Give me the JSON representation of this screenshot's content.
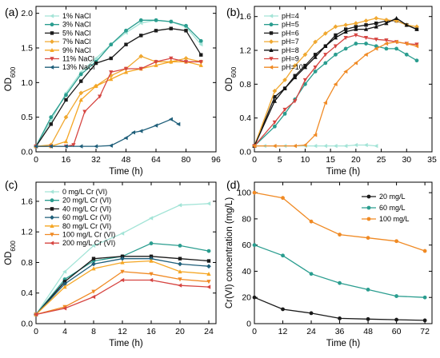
{
  "chart_data": [
    {
      "panel": "(a)",
      "type": "line",
      "xlabel": "Time (h)",
      "ylabel": "OD",
      "ylabel_sub": "600",
      "xlim": [
        0,
        96
      ],
      "ylim": [
        0,
        2.1
      ],
      "xticks": [
        0,
        16,
        32,
        48,
        64,
        80,
        96
      ],
      "yticks": [
        0,
        0.5,
        1.0,
        1.5,
        2.0
      ],
      "ytick_labels": [
        "0.0",
        "0.5",
        "1.0",
        "1.5",
        "2.0"
      ],
      "legend": "top-left",
      "series": [
        {
          "name": "1% NaCl",
          "color": "#a3e4d7",
          "marker": "triangle-left",
          "x": [
            0,
            8,
            16,
            24,
            32,
            40,
            48,
            56,
            64,
            72,
            80,
            88
          ],
          "y": [
            0.08,
            0.45,
            0.85,
            1.15,
            1.35,
            1.55,
            1.72,
            1.86,
            1.9,
            1.88,
            1.8,
            1.55
          ]
        },
        {
          "name": "3% NaCl",
          "color": "#2a9d8f",
          "marker": "circle",
          "x": [
            0,
            8,
            16,
            24,
            32,
            40,
            48,
            56,
            64,
            72,
            80,
            88
          ],
          "y": [
            0.08,
            0.5,
            0.82,
            1.12,
            1.3,
            1.55,
            1.75,
            1.9,
            1.9,
            1.88,
            1.82,
            1.6
          ]
        },
        {
          "name": "5% NaCl",
          "color": "#1a1a1a",
          "marker": "square",
          "x": [
            0,
            8,
            16,
            24,
            32,
            40,
            48,
            56,
            64,
            72,
            80,
            88
          ],
          "y": [
            0.08,
            0.4,
            0.75,
            1.02,
            1.28,
            1.35,
            1.55,
            1.68,
            1.75,
            1.78,
            1.75,
            1.4
          ]
        },
        {
          "name": "7% NaCl",
          "color": "#f0a830",
          "marker": "diamond",
          "x": [
            0,
            8,
            16,
            24,
            32,
            40,
            48,
            56,
            64,
            72,
            80,
            88
          ],
          "y": [
            0.08,
            0.1,
            0.5,
            0.85,
            0.95,
            1.1,
            1.2,
            1.38,
            1.3,
            1.3,
            1.35,
            1.3
          ]
        },
        {
          "name": "9% NaCl",
          "color": "#f5a623",
          "marker": "triangle-up",
          "x": [
            0,
            8,
            16,
            24,
            32,
            40,
            48,
            56,
            64,
            72,
            80,
            88
          ],
          "y": [
            0.08,
            0.08,
            0.15,
            0.75,
            0.95,
            1.05,
            1.15,
            1.2,
            1.25,
            1.3,
            1.3,
            1.25
          ]
        },
        {
          "name": "11% NaCl",
          "color": "#d64541",
          "marker": "triangle-down",
          "x": [
            0,
            8,
            16,
            20,
            26,
            34,
            40,
            48,
            56,
            64,
            72,
            80,
            88
          ],
          "y": [
            0.08,
            0.08,
            0.08,
            0.1,
            0.58,
            0.8,
            1.15,
            1.2,
            1.2,
            1.3,
            1.35,
            1.3,
            1.3
          ]
        },
        {
          "name": "13% NaCl",
          "color": "#1f5f7a",
          "marker": "triangle-left",
          "x": [
            0,
            8,
            16,
            24,
            32,
            40,
            48,
            52,
            56,
            64,
            72,
            76
          ],
          "y": [
            0.08,
            0.08,
            0.08,
            0.08,
            0.08,
            0.09,
            0.2,
            0.28,
            0.3,
            0.38,
            0.47,
            0.4
          ]
        }
      ]
    },
    {
      "panel": "(b)",
      "type": "line",
      "xlabel": "Time (h)",
      "ylabel": "OD",
      "ylabel_sub": "600",
      "xlim": [
        0,
        35
      ],
      "ylim": [
        0,
        1.72
      ],
      "xticks": [
        0,
        5,
        10,
        15,
        20,
        25,
        30,
        35
      ],
      "yticks": [
        0,
        0.4,
        0.8,
        1.2,
        1.6
      ],
      "ytick_labels": [
        "0.0",
        "0.4",
        "0.8",
        "1.2",
        "1.6"
      ],
      "legend": "top-left",
      "series": [
        {
          "name": "pH=4",
          "color": "#a3e4d7",
          "marker": "triangle-left",
          "x": [
            0,
            2,
            4,
            6,
            8,
            10,
            12,
            14,
            16,
            18,
            20,
            22,
            24
          ],
          "y": [
            0.07,
            0.07,
            0.07,
            0.07,
            0.07,
            0.07,
            0.07,
            0.07,
            0.07,
            0.07,
            0.08,
            0.08,
            0.07
          ]
        },
        {
          "name": "pH=5",
          "color": "#2a9d8f",
          "marker": "circle",
          "x": [
            0,
            4,
            6,
            8,
            10,
            12,
            14,
            16,
            18,
            20,
            22,
            24,
            26,
            28,
            30,
            32
          ],
          "y": [
            0.07,
            0.3,
            0.45,
            0.62,
            0.8,
            0.95,
            1.05,
            1.15,
            1.22,
            1.28,
            1.28,
            1.25,
            1.22,
            1.22,
            1.15,
            1.08
          ]
        },
        {
          "name": "pH=6",
          "color": "#1a1a1a",
          "marker": "square",
          "x": [
            0,
            4,
            6,
            8,
            10,
            12,
            14,
            16,
            18,
            20,
            22,
            24,
            26,
            28,
            30,
            32
          ],
          "y": [
            0.07,
            0.65,
            0.75,
            0.9,
            1.02,
            1.15,
            1.25,
            1.38,
            1.45,
            1.48,
            1.5,
            1.52,
            1.55,
            1.55,
            1.5,
            1.45
          ]
        },
        {
          "name": "pH=7",
          "color": "#f0a830",
          "marker": "diamond",
          "x": [
            0,
            4,
            6,
            8,
            10,
            12,
            14,
            16,
            18,
            20,
            22,
            24,
            26,
            28,
            30,
            32
          ],
          "y": [
            0.07,
            0.72,
            0.85,
            1.02,
            1.15,
            1.3,
            1.4,
            1.48,
            1.5,
            1.52,
            1.55,
            1.58,
            1.56,
            1.55,
            1.5,
            1.48
          ]
        },
        {
          "name": "pH=8",
          "color": "#111111",
          "marker": "triangle-up",
          "x": [
            0,
            4,
            6,
            8,
            10,
            12,
            14,
            16,
            18,
            20,
            22,
            24,
            26,
            28,
            30,
            32
          ],
          "y": [
            0.07,
            0.6,
            0.75,
            0.88,
            1.0,
            1.12,
            1.25,
            1.35,
            1.42,
            1.45,
            1.45,
            1.48,
            1.52,
            1.58,
            1.5,
            1.45
          ]
        },
        {
          "name": "pH=9",
          "color": "#d64541",
          "marker": "triangle-down",
          "x": [
            0,
            4,
            6,
            8,
            10,
            12,
            14,
            16,
            18,
            20,
            22,
            24,
            26,
            28,
            30,
            32
          ],
          "y": [
            0.07,
            0.35,
            0.5,
            0.6,
            0.85,
            1.0,
            1.15,
            1.25,
            1.35,
            1.38,
            1.35,
            1.33,
            1.32,
            1.3,
            1.28,
            1.27
          ]
        },
        {
          "name": "pH=10",
          "color": "#f08a24",
          "marker": "triangle-left",
          "x": [
            0,
            4,
            8,
            10,
            12,
            14,
            16,
            18,
            20,
            22,
            24,
            26,
            28,
            30,
            32
          ],
          "y": [
            0.07,
            0.07,
            0.07,
            0.08,
            0.2,
            0.58,
            0.8,
            0.95,
            1.05,
            1.15,
            1.22,
            1.28,
            1.3,
            1.28,
            1.25
          ]
        }
      ]
    },
    {
      "panel": "(c)",
      "type": "line",
      "xlabel": "Time (h)",
      "ylabel": "OD",
      "ylabel_sub": "600",
      "xlim": [
        0,
        25
      ],
      "ylim": [
        0,
        1.85
      ],
      "xticks": [
        0,
        4,
        8,
        12,
        16,
        20,
        24
      ],
      "yticks": [
        0,
        0.4,
        0.8,
        1.2,
        1.6
      ],
      "ytick_labels": [
        "0.0",
        "0.4",
        "0.8",
        "1.2",
        "1.6"
      ],
      "legend": "top-left",
      "series": [
        {
          "name": "0 mg/L Cr (VI)",
          "color": "#a3e4d7",
          "marker": "triangle-left",
          "x": [
            0,
            4,
            8,
            12,
            16,
            20,
            24
          ],
          "y": [
            0.12,
            0.68,
            1.02,
            1.18,
            1.38,
            1.55,
            1.57
          ]
        },
        {
          "name": "20 mg/L Cr (VI)",
          "color": "#2a9d8f",
          "marker": "circle",
          "x": [
            0,
            4,
            8,
            12,
            16,
            20,
            24
          ],
          "y": [
            0.12,
            0.58,
            0.82,
            0.88,
            1.05,
            1.02,
            0.95
          ]
        },
        {
          "name": "40 mg/L Cr (VI)",
          "color": "#1a1a1a",
          "marker": "square",
          "x": [
            0,
            4,
            8,
            12,
            16,
            20,
            24
          ],
          "y": [
            0.12,
            0.55,
            0.85,
            0.88,
            0.88,
            0.85,
            0.82
          ]
        },
        {
          "name": "60 mg/L Cr (VI)",
          "color": "#1f5f7a",
          "marker": "diamond",
          "x": [
            0,
            4,
            8,
            12,
            16,
            20,
            24
          ],
          "y": [
            0.12,
            0.52,
            0.78,
            0.85,
            0.85,
            0.78,
            0.75
          ]
        },
        {
          "name": "80 mg/L Cr (VI)",
          "color": "#f5a623",
          "marker": "triangle-up",
          "x": [
            0,
            4,
            8,
            12,
            16,
            20,
            24
          ],
          "y": [
            0.12,
            0.48,
            0.72,
            0.8,
            0.82,
            0.68,
            0.65
          ]
        },
        {
          "name": "100 mg/L Cr (VI)",
          "color": "#f08a24",
          "marker": "triangle-down",
          "x": [
            0,
            4,
            8,
            12,
            16,
            20,
            24
          ],
          "y": [
            0.12,
            0.22,
            0.42,
            0.68,
            0.65,
            0.58,
            0.55
          ]
        },
        {
          "name": "200 mg/L Cr (VI)",
          "color": "#d64541",
          "marker": "triangle-left",
          "x": [
            0,
            4,
            8,
            12,
            16,
            20,
            24
          ],
          "y": [
            0.12,
            0.2,
            0.35,
            0.57,
            0.57,
            0.5,
            0.48
          ]
        }
      ]
    },
    {
      "panel": "(d)",
      "type": "line",
      "xlabel": "Time (h)",
      "ylabel": "Cr(VI) concentration (mg/L)",
      "ylabel_sub": "",
      "xlim": [
        0,
        75
      ],
      "ylim": [
        0,
        108
      ],
      "xticks": [
        0,
        12,
        24,
        36,
        48,
        60,
        72
      ],
      "yticks": [
        0,
        20,
        40,
        60,
        80,
        100
      ],
      "ytick_labels": [
        "0",
        "20",
        "40",
        "60",
        "80",
        "100"
      ],
      "legend": "top-right",
      "series": [
        {
          "name": "20 mg/L",
          "color": "#1a1a1a",
          "marker": "circle",
          "x": [
            0,
            12,
            24,
            36,
            48,
            60,
            72
          ],
          "y": [
            20,
            11,
            8,
            4,
            3.5,
            3,
            2.5
          ]
        },
        {
          "name": "60 mg/L",
          "color": "#2a9d8f",
          "marker": "circle",
          "x": [
            0,
            12,
            24,
            36,
            48,
            60,
            72
          ],
          "y": [
            60,
            52,
            38,
            31,
            26,
            21,
            20
          ]
        },
        {
          "name": "100 mg/L",
          "color": "#f08a24",
          "marker": "circle",
          "x": [
            0,
            12,
            24,
            36,
            48,
            60,
            72
          ],
          "y": [
            100,
            96,
            78,
            68,
            65.5,
            63,
            55.5
          ]
        }
      ]
    }
  ]
}
